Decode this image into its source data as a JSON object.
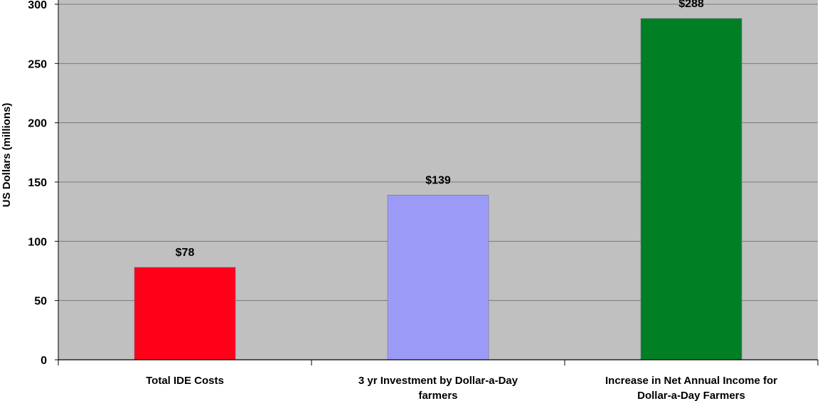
{
  "chart_data": {
    "type": "bar",
    "title": "",
    "xlabel": "",
    "ylabel": "US Dollars (millions)",
    "ylim": [
      0,
      300
    ],
    "yticks": [
      0,
      50,
      100,
      150,
      200,
      250,
      300
    ],
    "grid": true,
    "legend": "none",
    "categories": [
      [
        "Total IDE Costs"
      ],
      [
        "3 yr Investment by Dollar-a-Day",
        "farmers"
      ],
      [
        "Increase in Net Annual Income for",
        "Dollar-a-Day Farmers"
      ]
    ],
    "values": [
      78,
      139,
      288
    ],
    "data_labels": [
      "$78",
      "$139",
      "$288"
    ],
    "bar_colors": [
      "#ff0018",
      "#9b9bf7",
      "#007f24"
    ],
    "plot_background": "#c0c0c0"
  }
}
